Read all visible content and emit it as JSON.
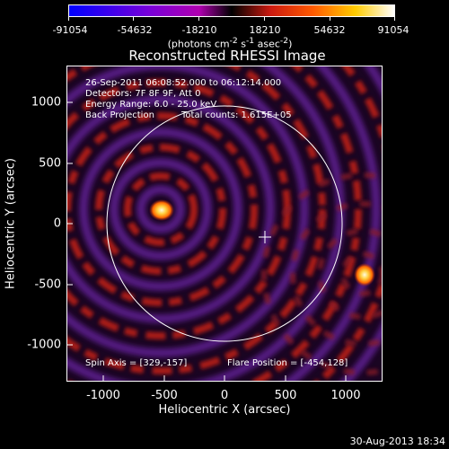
{
  "colorbar": {
    "ticks": [
      "-91054",
      "-54632",
      "-18210",
      "18210",
      "54632",
      "91054"
    ],
    "units_prefix": "(photons cm",
    "units_sup1": "-2",
    "units_mid1": " s",
    "units_sup2": "-1",
    "units_mid2": " asec",
    "units_sup3": "-2",
    "units_suffix": ")"
  },
  "plot": {
    "title": "Reconstructed RHESSI Image",
    "annotation_line1": "26-Sep-2011 06:08:52.000 to 06:12:14.000",
    "annotation_line2": "Detectors: 7F 8F 9F, Att 0",
    "annotation_line3": "Energy Range: 6.0 - 25.0 keV",
    "annotation_line4a": "Back Projection",
    "annotation_line4b": "Total counts: 1.615E+05",
    "spin_axis": "Spin Axis = [329,-157]",
    "flare_position": "Flare Position = [-454,128]"
  },
  "axes": {
    "xlabel": "Heliocentric X (arcsec)",
    "ylabel": "Heliocentric Y (arcsec)",
    "xticks": [
      "-1000",
      "-500",
      "0",
      "500",
      "1000"
    ],
    "yticks": [
      "1000",
      "500",
      "0",
      "-500",
      "-1000"
    ],
    "xlim": [
      -1300,
      1300
    ],
    "ylim": [
      -1300,
      1300
    ]
  },
  "footer": {
    "date": "30-Aug-2013 18:34"
  },
  "colors": {
    "background": "#000000",
    "image_dark": "#1a0522",
    "image_purple": "#5a1f8a",
    "image_red": "#b01a12",
    "image_hot": "#ffd040"
  }
}
